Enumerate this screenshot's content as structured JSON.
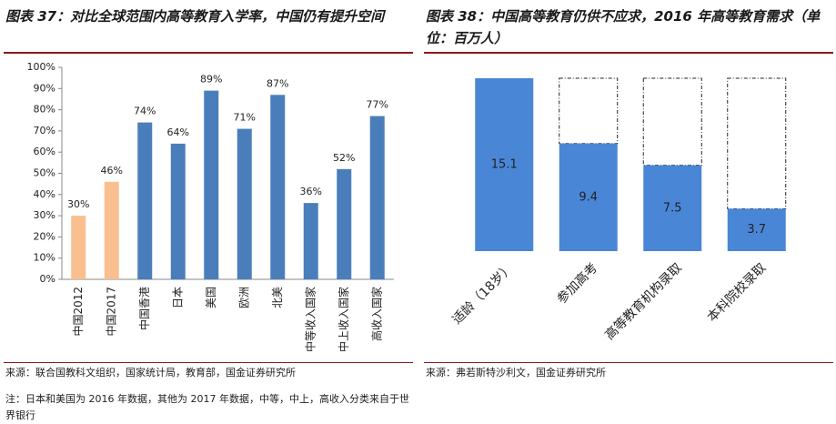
{
  "chart_data": [
    {
      "type": "bar",
      "title": "图表 37：对比全球范围内高等教育入学率，中国仍有提升空间",
      "categories": [
        "中国2012",
        "中国2017",
        "中国香港",
        "日本",
        "美国",
        "欧洲",
        "北美",
        "中等收入国家",
        "中上收入国家",
        "高收入国家"
      ],
      "values": [
        30,
        46,
        74,
        64,
        89,
        71,
        87,
        36,
        52,
        77
      ],
      "value_labels": [
        "30%",
        "46%",
        "74%",
        "64%",
        "89%",
        "71%",
        "87%",
        "36%",
        "52%",
        "77%"
      ],
      "colors": [
        "#f9bf8f",
        "#f9bf8f",
        "#4a7ebb",
        "#4a7ebb",
        "#4a7ebb",
        "#4a7ebb",
        "#4a7ebb",
        "#4a7ebb",
        "#4a7ebb",
        "#4a7ebb"
      ],
      "ylim": [
        0,
        100
      ],
      "yticks": [
        {
          "value": 0,
          "label": "0%"
        },
        {
          "value": 10,
          "label": "10%"
        },
        {
          "value": 20,
          "label": "20%"
        },
        {
          "value": 30,
          "label": "30%"
        },
        {
          "value": 40,
          "label": "40%"
        },
        {
          "value": 50,
          "label": "50%"
        },
        {
          "value": 60,
          "label": "60%"
        },
        {
          "value": 70,
          "label": "70%"
        },
        {
          "value": 80,
          "label": "80%"
        },
        {
          "value": 90,
          "label": "90%"
        },
        {
          "value": 100,
          "label": "100%"
        }
      ],
      "source": "来源：联合国教科文组织，国家统计局，教育部，国金证券研究所",
      "note": "注：日本和美国为 2016 年数据，其他为 2017 年数据，中等，中上，高收入分类来自于世界银行"
    },
    {
      "type": "bar",
      "title": "图表 38：中国高等教育仍供不应求，2016 年高等教育需求（单位：百万人）",
      "categories": [
        "适龄（18岁）",
        "参加高考",
        "高等教育机构录取",
        "本科院校录取"
      ],
      "values": [
        15.1,
        9.4,
        7.5,
        3.7
      ],
      "color": "#4a86d6",
      "source": "来源：弗若斯特沙利文，国金证券研究所"
    }
  ]
}
